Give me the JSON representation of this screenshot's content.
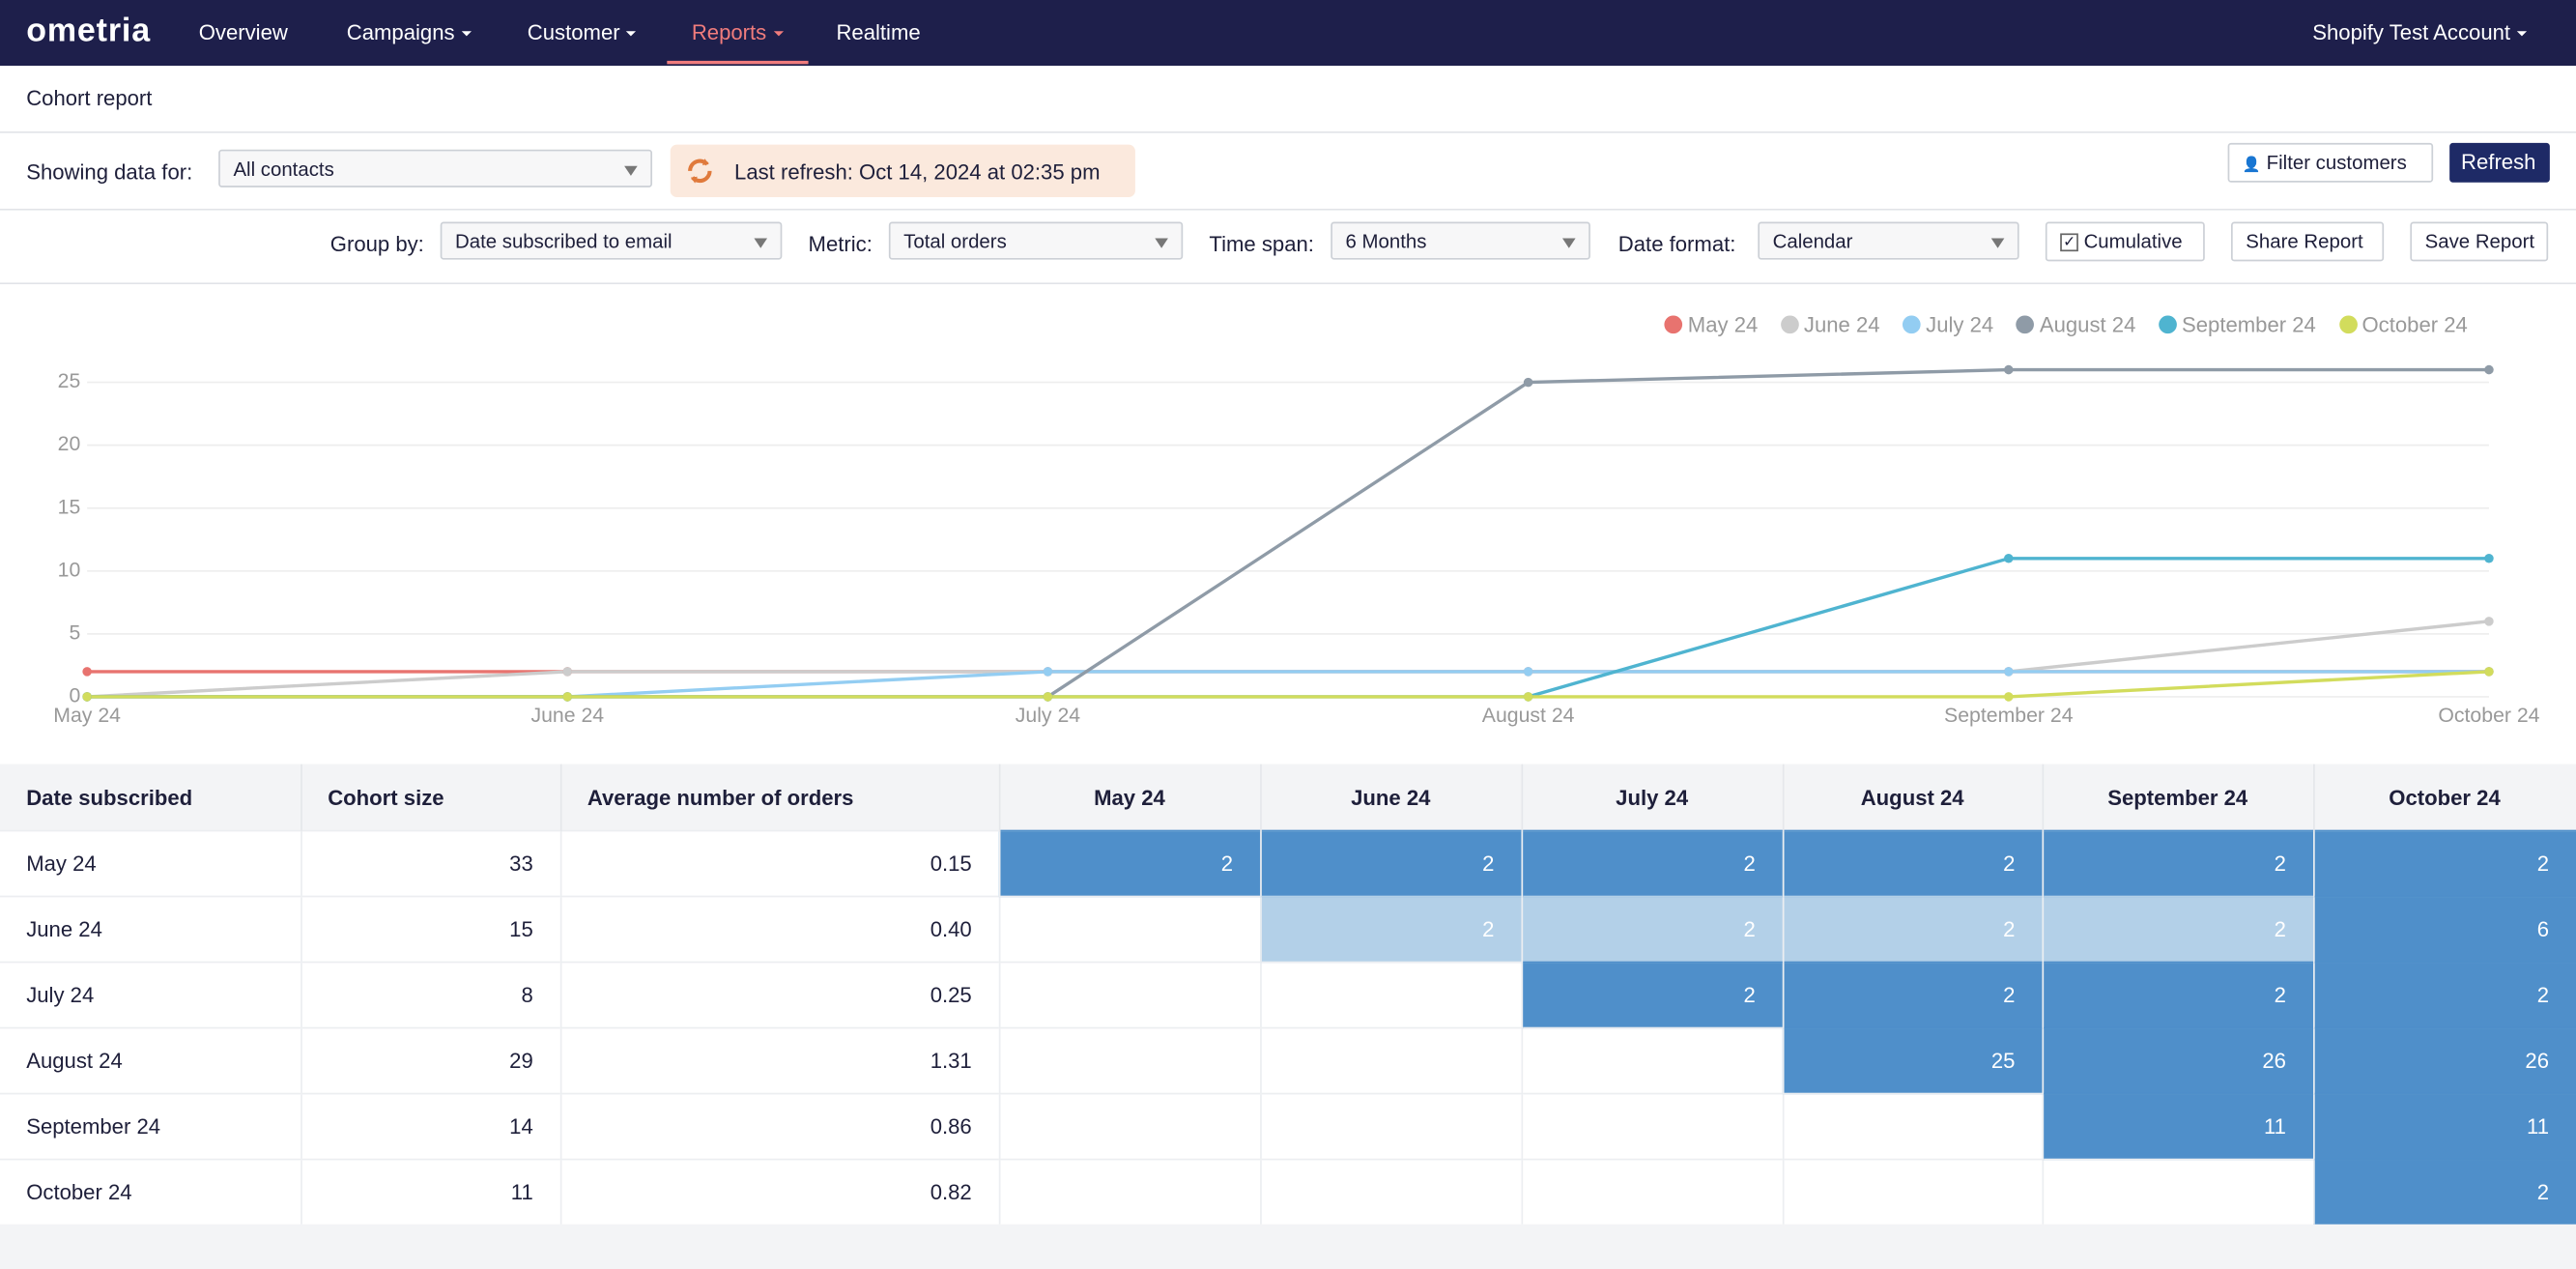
{
  "nav": {
    "logo": "ometria",
    "items": [
      "Overview",
      "Campaigns",
      "Customer",
      "Reports",
      "Realtime"
    ],
    "active": 3,
    "account": "Shopify Test Account"
  },
  "header": {
    "title": "Cohort report"
  },
  "filters": {
    "showing_label": "Showing data for:",
    "showing_value": "All contacts",
    "last_refresh": "Last refresh: Oct 14, 2024 at 02:35 pm",
    "filter_button": "Filter customers",
    "refresh_button": "Refresh"
  },
  "controls": {
    "group_by_label": "Group by:",
    "group_by": "Date subscribed to email",
    "metric_label": "Metric:",
    "metric": "Total orders",
    "time_span_label": "Time span:",
    "time_span": "6 Months",
    "date_format_label": "Date format:",
    "date_format": "Calendar",
    "cumulative": "Cumulative",
    "cumulative_checked": true,
    "share": "Share Report",
    "save": "Save Report"
  },
  "chart_data": {
    "type": "line",
    "categories": [
      "May 24",
      "June 24",
      "July 24",
      "August 24",
      "September 24",
      "October 24"
    ],
    "series": [
      {
        "name": "May 24",
        "color": "#e8736f",
        "values": [
          2,
          2,
          2,
          2,
          2,
          2
        ]
      },
      {
        "name": "June 24",
        "color": "#cccccc",
        "values": [
          0,
          2,
          2,
          2,
          2,
          6
        ]
      },
      {
        "name": "July 24",
        "color": "#93cdf2",
        "values": [
          0,
          0,
          2,
          2,
          2,
          2
        ]
      },
      {
        "name": "August 24",
        "color": "#8f9ba7",
        "values": [
          0,
          0,
          0,
          25,
          26,
          26
        ]
      },
      {
        "name": "September 24",
        "color": "#4fb4d0",
        "values": [
          0,
          0,
          0,
          0,
          11,
          11
        ]
      },
      {
        "name": "October 24",
        "color": "#d2dc5c",
        "values": [
          0,
          0,
          0,
          0,
          0,
          2
        ]
      }
    ],
    "ylim": [
      0,
      26
    ],
    "yticks": [
      0,
      5,
      10,
      15,
      20,
      25
    ],
    "grid": true
  },
  "table": {
    "columns": [
      "Date subscribed",
      "Cohort size",
      "Average number of orders",
      "May 24",
      "June 24",
      "July 24",
      "August 24",
      "September 24",
      "October 24"
    ],
    "rows": [
      {
        "cells": [
          "May 24",
          "33",
          "0.15",
          "2",
          "2",
          "2",
          "2",
          "2",
          "2"
        ],
        "shades": [
          null,
          null,
          null,
          "#4f8fca",
          "#4f8fca",
          "#4f8fca",
          "#4f8fca",
          "#4f8fca",
          "#4f8fca"
        ]
      },
      {
        "cells": [
          "June 24",
          "15",
          "0.40",
          null,
          "2",
          "2",
          "2",
          "2",
          "6"
        ],
        "shades": [
          null,
          null,
          null,
          null,
          "#b3d0e8",
          "#b3d0e8",
          "#b3d0e8",
          "#b3d0e8",
          "#4f8fca"
        ]
      },
      {
        "cells": [
          "July 24",
          "8",
          "0.25",
          null,
          null,
          "2",
          "2",
          "2",
          "2"
        ],
        "shades": [
          null,
          null,
          null,
          null,
          null,
          "#4f8fca",
          "#4f8fca",
          "#4f8fca",
          "#4f8fca"
        ]
      },
      {
        "cells": [
          "August 24",
          "29",
          "1.31",
          null,
          null,
          null,
          "25",
          "26",
          "26"
        ],
        "shades": [
          null,
          null,
          null,
          null,
          null,
          null,
          "#4f8fca",
          "#4f8fca",
          "#4f8fca"
        ]
      },
      {
        "cells": [
          "September 24",
          "14",
          "0.86",
          null,
          null,
          null,
          null,
          "11",
          "11"
        ],
        "shades": [
          null,
          null,
          null,
          null,
          null,
          null,
          null,
          "#4f8fca",
          "#4f8fca"
        ]
      },
      {
        "cells": [
          "October 24",
          "11",
          "0.82",
          null,
          null,
          null,
          null,
          null,
          "2"
        ],
        "shades": [
          null,
          null,
          null,
          null,
          null,
          null,
          null,
          null,
          "#4f8fca"
        ]
      }
    ]
  }
}
